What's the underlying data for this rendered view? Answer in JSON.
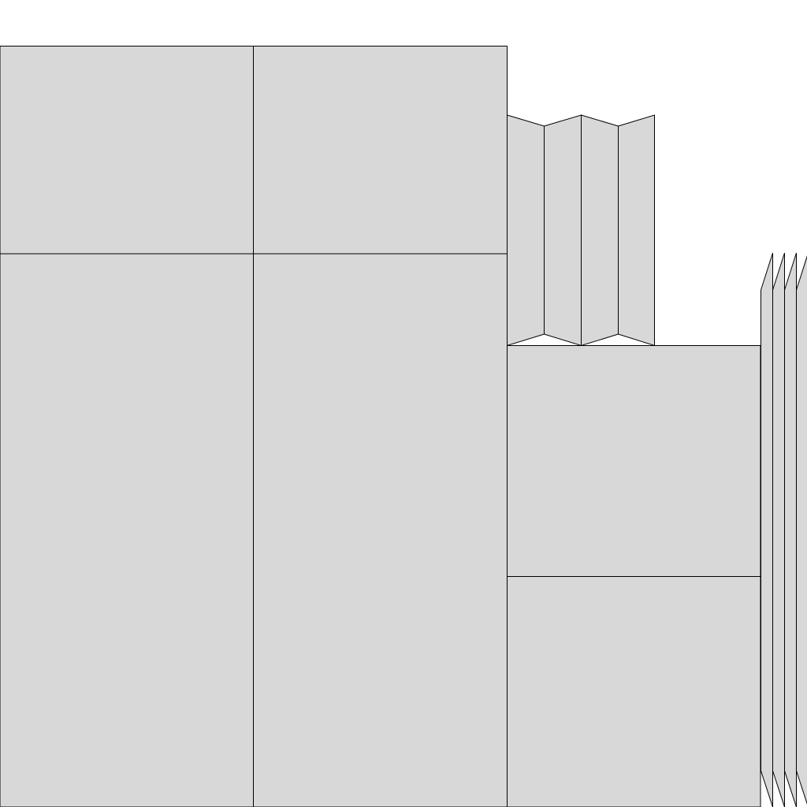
{
  "colors": {
    "panel_fill": "#d8d8d8",
    "outline": "#000000",
    "background": "#ffffff"
  },
  "panels": {
    "flat_count": 6,
    "accordion_fold_count": 4,
    "slanted_strip_count": 4
  }
}
